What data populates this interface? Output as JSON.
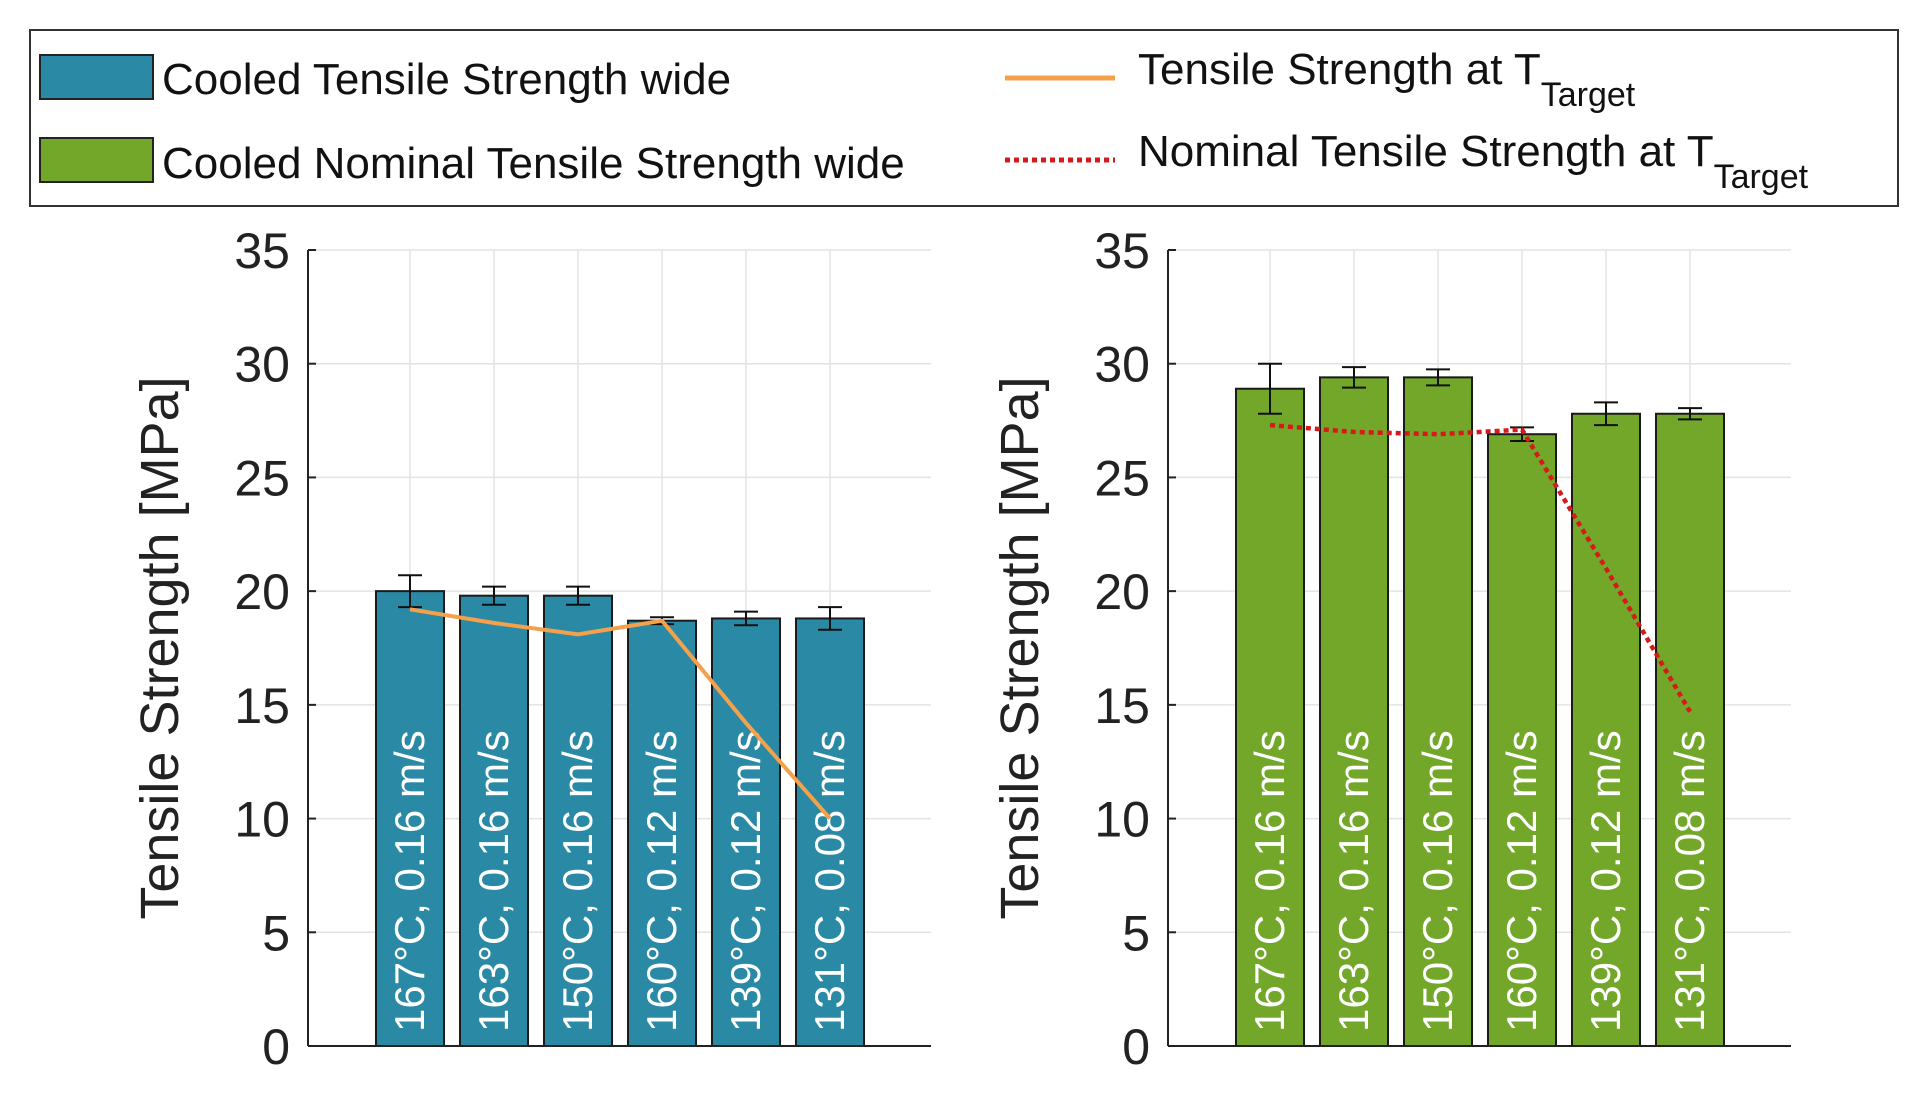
{
  "legend": {
    "entries": [
      {
        "label": "Cooled Tensile Strength wide",
        "kind": "bar",
        "color": "#2A8AA5"
      },
      {
        "label": "Cooled Nominal Tensile Strength wide",
        "kind": "bar",
        "color": "#72A72A"
      },
      {
        "label": "Tensile Strength at T",
        "subscript": "Target",
        "kind": "line",
        "color": "#F5A04A"
      },
      {
        "label": "Nominal Tensile Strength at T",
        "subscript": "Target",
        "kind": "dotted-line",
        "color": "#D7191C"
      }
    ]
  },
  "chart_data": [
    {
      "type": "bar",
      "ylabel": "Tensile Strength [MPa]",
      "xlabel": "",
      "ylim": [
        0,
        35
      ],
      "yticks": [
        0,
        5,
        10,
        15,
        20,
        25,
        30,
        35
      ],
      "grid": true,
      "bar_color": "#2A8AA5",
      "line_color": "#F5A04A",
      "line_style": "solid",
      "categories": [
        "167°C, 0.16 m/s",
        "163°C, 0.16 m/s",
        "150°C, 0.16 m/s",
        "160°C, 0.12 m/s",
        "139°C, 0.12 m/s",
        "131°C, 0.08 m/s"
      ],
      "series": [
        {
          "name": "Cooled Tensile Strength wide",
          "values": [
            20.0,
            19.8,
            19.8,
            18.7,
            18.8,
            18.8
          ],
          "error": [
            0.7,
            0.4,
            0.4,
            0.15,
            0.3,
            0.5
          ]
        },
        {
          "name": "Tensile Strength at T Target",
          "values": [
            19.2,
            18.6,
            18.1,
            18.7,
            14.2,
            10.0
          ]
        }
      ]
    },
    {
      "type": "bar",
      "ylabel": "Tensile Strength [MPa]",
      "xlabel": "",
      "ylim": [
        0,
        35
      ],
      "yticks": [
        0,
        5,
        10,
        15,
        20,
        25,
        30,
        35
      ],
      "grid": true,
      "bar_color": "#72A72A",
      "line_color": "#D7191C",
      "line_style": "dotted",
      "categories": [
        "167°C, 0.16 m/s",
        "163°C, 0.16 m/s",
        "150°C, 0.16 m/s",
        "160°C, 0.12 m/s",
        "139°C, 0.12 m/s",
        "131°C, 0.08 m/s"
      ],
      "series": [
        {
          "name": "Cooled Nominal Tensile Strength wide",
          "values": [
            28.9,
            29.4,
            29.4,
            26.9,
            27.8,
            27.8
          ],
          "error": [
            1.1,
            0.45,
            0.35,
            0.3,
            0.5,
            0.25
          ]
        },
        {
          "name": "Nominal Tensile Strength at T Target",
          "values": [
            27.3,
            27.0,
            26.9,
            27.1,
            21.0,
            14.7
          ]
        }
      ]
    }
  ]
}
